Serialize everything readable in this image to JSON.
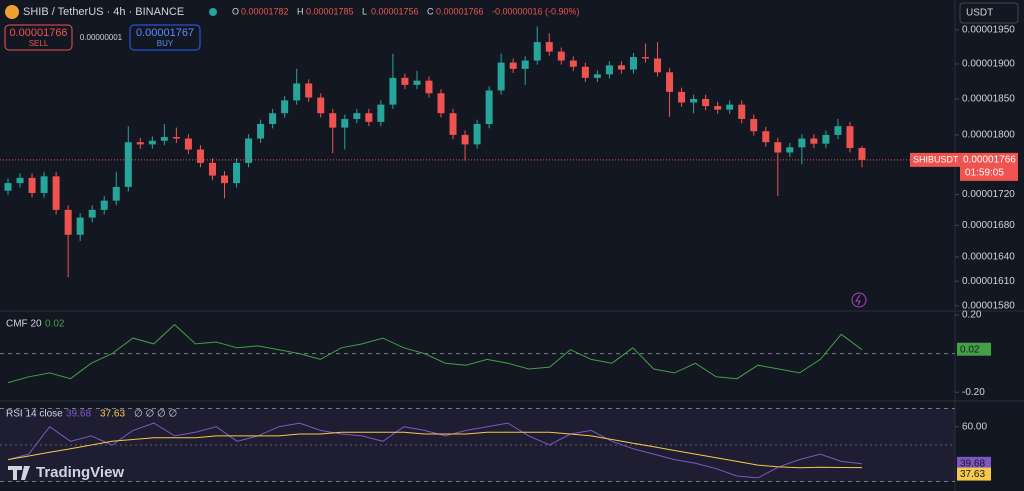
{
  "header": {
    "symbol": "SHIB / TetherUS · 4h · BINANCE",
    "ohlc_labels": [
      "O",
      "H",
      "L",
      "C"
    ],
    "change": "-0.00000016 (-0.90%)",
    "sell_price": "0.00001766",
    "sell": "SELL",
    "spread": "0.00000001",
    "buy_price": "0.00001767",
    "buy": "BUY",
    "currency": "USDT",
    "logo": "TradingView"
  },
  "price_tag": {
    "symbol": "SHIBUSDT",
    "price": "0.00001766",
    "countdown": "01:59:05"
  },
  "chart_data": [
    {
      "type": "candlestick",
      "log_scale": true,
      "up_color": "#26a69a",
      "down_color": "#ef5350",
      "open": [
        1.725e-05,
        1.735e-05,
        1.742e-05,
        1.722e-05,
        1.744e-05,
        1.7e-05,
        1.668e-05,
        1.69e-05,
        1.7e-05,
        1.712e-05,
        1.73e-05,
        1.79e-05,
        1.787e-05,
        1.792e-05,
        1.797e-05,
        1.795e-05,
        1.78e-05,
        1.762e-05,
        1.745e-05,
        1.735e-05,
        1.762e-05,
        1.795e-05,
        1.815e-05,
        1.83e-05,
        1.848e-05,
        1.872e-05,
        1.852e-05,
        1.83e-05,
        1.81e-05,
        1.822e-05,
        1.83e-05,
        1.818e-05,
        1.842e-05,
        1.88e-05,
        1.87e-05,
        1.876e-05,
        1.858e-05,
        1.83e-05,
        1.8e-05,
        1.787e-05,
        1.815e-05,
        1.862e-05,
        1.902e-05,
        1.893e-05,
        1.905e-05,
        1.932e-05,
        1.918e-05,
        1.905e-05,
        1.896e-05,
        1.88e-05,
        1.885e-05,
        1.898e-05,
        1.892e-05,
        1.91e-05,
        1.908e-05,
        1.888e-05,
        1.86e-05,
        1.845e-05,
        1.85e-05,
        1.84e-05,
        1.835e-05,
        1.842e-05,
        1.822e-05,
        1.805e-05,
        1.79e-05,
        1.776e-05,
        1.783e-05,
        1.795e-05,
        1.788e-05,
        1.8e-05,
        1.812e-05,
        1.782e-05
      ],
      "high": [
        1.741e-05,
        1.748e-05,
        1.748e-05,
        1.75e-05,
        1.75e-05,
        1.706e-05,
        1.696e-05,
        1.706e-05,
        1.718e-05,
        1.75e-05,
        1.812e-05,
        1.796e-05,
        1.798e-05,
        1.815e-05,
        1.81e-05,
        1.801e-05,
        1.786e-05,
        1.768e-05,
        1.751e-05,
        1.768e-05,
        1.801e-05,
        1.821e-05,
        1.836e-05,
        1.854e-05,
        1.893e-05,
        1.878e-05,
        1.858e-05,
        1.836e-05,
        1.828e-05,
        1.836e-05,
        1.836e-05,
        1.848e-05,
        1.915e-05,
        1.886e-05,
        1.89e-05,
        1.882e-05,
        1.864e-05,
        1.836e-05,
        1.806e-05,
        1.821e-05,
        1.868e-05,
        1.915e-05,
        1.908e-05,
        1.911e-05,
        1.955e-05,
        1.945e-05,
        1.924e-05,
        1.911e-05,
        1.902e-05,
        1.891e-05,
        1.904e-05,
        1.904e-05,
        1.916e-05,
        1.93e-05,
        1.932e-05,
        1.894e-05,
        1.866e-05,
        1.856e-05,
        1.856e-05,
        1.846e-05,
        1.848e-05,
        1.848e-05,
        1.828e-05,
        1.811e-05,
        1.796e-05,
        1.789e-05,
        1.801e-05,
        1.801e-05,
        1.806e-05,
        1.822e-05,
        1.818e-05,
        1.785e-05
      ],
      "low": [
        1.719e-05,
        1.729e-05,
        1.716e-05,
        1.716e-05,
        1.694e-05,
        1.615e-05,
        1.66e-05,
        1.684e-05,
        1.694e-05,
        1.706e-05,
        1.724e-05,
        1.781e-05,
        1.781e-05,
        1.786e-05,
        1.789e-05,
        1.774e-05,
        1.756e-05,
        1.739e-05,
        1.715e-05,
        1.729e-05,
        1.756e-05,
        1.789e-05,
        1.809e-05,
        1.824e-05,
        1.842e-05,
        1.846e-05,
        1.824e-05,
        1.775e-05,
        1.78e-05,
        1.816e-05,
        1.812e-05,
        1.812e-05,
        1.836e-05,
        1.864e-05,
        1.864e-05,
        1.852e-05,
        1.824e-05,
        1.794e-05,
        1.765e-05,
        1.781e-05,
        1.809e-05,
        1.856e-05,
        1.887e-05,
        1.87e-05,
        1.899e-05,
        1.912e-05,
        1.899e-05,
        1.89e-05,
        1.874e-05,
        1.874e-05,
        1.879e-05,
        1.886e-05,
        1.886e-05,
        1.902e-05,
        1.882e-05,
        1.825e-05,
        1.839e-05,
        1.83e-05,
        1.834e-05,
        1.829e-05,
        1.829e-05,
        1.816e-05,
        1.799e-05,
        1.784e-05,
        1.718e-05,
        1.77e-05,
        1.76e-05,
        1.782e-05,
        1.782e-05,
        1.794e-05,
        1.776e-05,
        1.756e-05
      ],
      "close": [
        1.735e-05,
        1.742e-05,
        1.722e-05,
        1.744e-05,
        1.7e-05,
        1.668e-05,
        1.69e-05,
        1.7e-05,
        1.712e-05,
        1.73e-05,
        1.79e-05,
        1.787e-05,
        1.792e-05,
        1.797e-05,
        1.795e-05,
        1.78e-05,
        1.762e-05,
        1.745e-05,
        1.735e-05,
        1.762e-05,
        1.795e-05,
        1.815e-05,
        1.83e-05,
        1.848e-05,
        1.872e-05,
        1.852e-05,
        1.83e-05,
        1.81e-05,
        1.822e-05,
        1.83e-05,
        1.818e-05,
        1.842e-05,
        1.88e-05,
        1.87e-05,
        1.876e-05,
        1.858e-05,
        1.83e-05,
        1.8e-05,
        1.787e-05,
        1.815e-05,
        1.862e-05,
        1.902e-05,
        1.893e-05,
        1.905e-05,
        1.932e-05,
        1.918e-05,
        1.905e-05,
        1.896e-05,
        1.88e-05,
        1.885e-05,
        1.898e-05,
        1.892e-05,
        1.91e-05,
        1.908e-05,
        1.888e-05,
        1.86e-05,
        1.845e-05,
        1.85e-05,
        1.84e-05,
        1.835e-05,
        1.842e-05,
        1.822e-05,
        1.805e-05,
        1.79e-05,
        1.776e-05,
        1.783e-05,
        1.795e-05,
        1.788e-05,
        1.8e-05,
        1.812e-05,
        1.782e-05,
        1.766e-05
      ],
      "ylim": [
        1.575e-05,
        1.995e-05
      ],
      "yticks": [
        {
          "value": 1.95e-05,
          "label": "0.00001950"
        },
        {
          "value": 1.9e-05,
          "label": "0.00001900"
        },
        {
          "value": 1.85e-05,
          "label": "0.00001850"
        },
        {
          "value": 1.8e-05,
          "label": "0.00001800"
        },
        {
          "value": 1.72e-05,
          "label": "0.00001720"
        },
        {
          "value": 1.68e-05,
          "label": "0.00001680"
        },
        {
          "value": 1.64e-05,
          "label": "0.00001640"
        },
        {
          "value": 1.61e-05,
          "label": "0.00001610"
        },
        {
          "value": 1.58e-05,
          "label": "0.00001580"
        }
      ]
    },
    {
      "type": "line",
      "title": "CMF 20",
      "series": [
        {
          "name": "CMF",
          "color": "#43a047",
          "values": [
            -0.15,
            -0.12,
            -0.1,
            -0.13,
            -0.05,
            0.0,
            0.08,
            0.05,
            0.15,
            0.05,
            0.06,
            0.03,
            0.04,
            0.02,
            0.0,
            -0.03,
            0.03,
            0.05,
            0.08,
            0.03,
            0.0,
            -0.05,
            -0.06,
            -0.03,
            -0.05,
            -0.08,
            -0.07,
            0.02,
            -0.03,
            -0.05,
            0.03,
            -0.08,
            -0.1,
            -0.05,
            -0.12,
            -0.13,
            -0.06,
            -0.08,
            -0.1,
            -0.03,
            0.1,
            0.02
          ]
        }
      ],
      "ylim": [
        -0.235,
        0.21
      ],
      "yticks": [
        {
          "value": 0.2,
          "label": "0.20"
        },
        {
          "value": -0.2,
          "label": "-0.20"
        }
      ],
      "zero_line": 0
    },
    {
      "type": "line",
      "title": "RSI 14 close",
      "extra": "∅ ∅ ∅ ∅",
      "series": [
        {
          "name": "RSI",
          "color": "#7e57c2",
          "values": [
            42,
            45,
            60,
            52,
            55,
            50,
            58,
            62,
            55,
            57,
            60,
            52,
            55,
            60,
            62,
            58,
            56,
            55,
            52,
            60,
            58,
            55,
            58,
            60,
            62,
            55,
            50,
            56,
            58,
            52,
            48,
            45,
            42,
            40,
            37,
            33,
            32,
            38,
            42,
            45,
            41,
            39.68
          ]
        },
        {
          "name": "RSI-based MA",
          "color": "#f7c948",
          "values": [
            42,
            44,
            46,
            48,
            50,
            52,
            53,
            54,
            54,
            54,
            55,
            55,
            55,
            55,
            56,
            56,
            57,
            57,
            57,
            57,
            56,
            56,
            56,
            57,
            57,
            57,
            57,
            56,
            55,
            53,
            51,
            49,
            47,
            45,
            43,
            41,
            39,
            38,
            37.5,
            37.8,
            37.7,
            37.63
          ]
        }
      ],
      "ylim": [
        27,
        73
      ],
      "yticks": [
        {
          "value": 60,
          "label": "60.00"
        }
      ],
      "bands": [
        70,
        30
      ],
      "mid": 50
    }
  ]
}
